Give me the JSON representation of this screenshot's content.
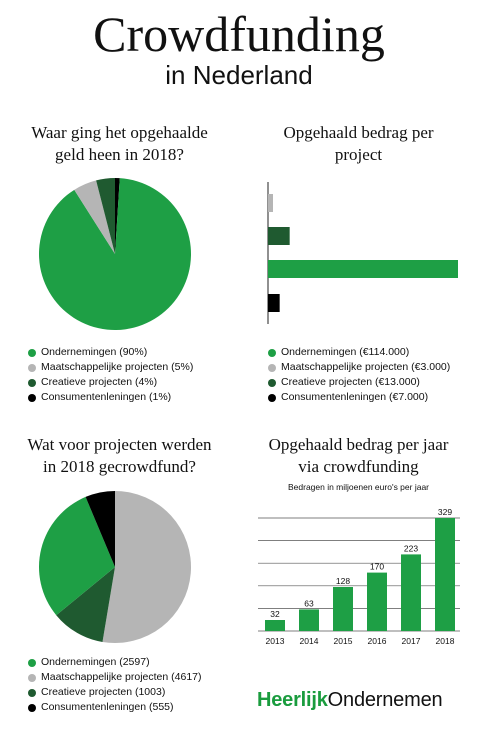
{
  "header": {
    "title": "Crowdfunding",
    "subtitle": "in Nederland"
  },
  "colors": {
    "green": "#1e9f45",
    "grey": "#b5b5b5",
    "darkgreen": "#1f5a30",
    "black": "#000000"
  },
  "pie1": {
    "title_line1": "Waar ging het opgehaalde",
    "title_line2": "geld heen in 2018?"
  },
  "bars1": {
    "title_line1": "Opgehaald bedrag per",
    "title_line2": "project"
  },
  "pie2": {
    "title_line1": "Wat voor projecten werden",
    "title_line2": "in 2018 gecrowdfund?"
  },
  "bars2": {
    "title_line1": "Opgehaald bedrag per jaar",
    "title_line2": "via crowdfunding",
    "subtitle": "Bedragen in miljoenen euro's per jaar"
  },
  "brand": {
    "part1": "Heerlijk",
    "part2": "Ondernemen"
  },
  "chart_data": [
    {
      "type": "pie",
      "title": "Waar ging het opgehaalde geld heen in 2018?",
      "labels": [
        "Ondernemingen (90%)",
        "Maatschappelijke projecten (5%)",
        "Creatieve projecten (4%)",
        "Consumentenleningen (1%)"
      ],
      "values": [
        90,
        5,
        4,
        1
      ],
      "colors": [
        "#1e9f45",
        "#b5b5b5",
        "#1f5a30",
        "#000000"
      ],
      "legend": "bottom"
    },
    {
      "type": "bar",
      "orientation": "horizontal",
      "title": "Opgehaald bedrag per project",
      "labels": [
        "Ondernemingen (€114.000)",
        "Maatschappelijke projecten (€3.000)",
        "Creatieve projecten (€13.000)",
        "Consumentenleningen (€7.000)"
      ],
      "values": [
        114000,
        3000,
        13000,
        7000
      ],
      "bar_order_top_to_bottom": [
        1,
        2,
        0,
        3
      ],
      "colors": [
        "#1e9f45",
        "#b5b5b5",
        "#1f5a30",
        "#000000"
      ],
      "legend": "bottom",
      "xlim": [
        0,
        114000
      ]
    },
    {
      "type": "pie",
      "title": "Wat voor projecten werden in 2018 gecrowdfund?",
      "labels": [
        "Ondernemingen (2597)",
        "Maatschappelijke projecten (4617)",
        "Creatieve projecten (1003)",
        "Consumentenleningen (555)"
      ],
      "values": [
        2597,
        4617,
        1003,
        555
      ],
      "colors": [
        "#1e9f45",
        "#b5b5b5",
        "#1f5a30",
        "#000000"
      ],
      "legend": "bottom"
    },
    {
      "type": "bar",
      "title": "Opgehaald bedrag per jaar via crowdfunding",
      "subtitle": "Bedragen in miljoenen euro's per jaar",
      "categories": [
        "2013",
        "2014",
        "2015",
        "2016",
        "2017",
        "2018"
      ],
      "values": [
        32,
        63,
        128,
        170,
        223,
        329
      ],
      "color": "#1e9f45",
      "ylim": [
        0,
        329
      ],
      "grid": true
    }
  ]
}
